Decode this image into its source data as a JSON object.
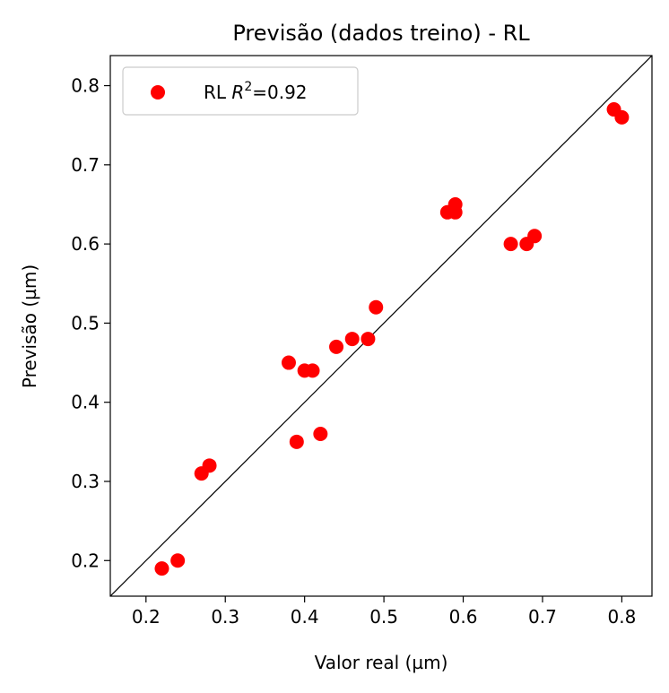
{
  "chart_data": {
    "type": "scatter",
    "title": "Previsão (dados treino) - RL",
    "xlabel": "Valor real (µm)",
    "ylabel": "Previsão (µm)",
    "xlim": [
      0.155,
      0.838
    ],
    "ylim": [
      0.155,
      0.838
    ],
    "xticks": [
      "0.2",
      "0.3",
      "0.4",
      "0.5",
      "0.6",
      "0.7",
      "0.8"
    ],
    "yticks": [
      "0.2",
      "0.3",
      "0.4",
      "0.5",
      "0.6",
      "0.7",
      "0.8"
    ],
    "grid": false,
    "legend_position": "upper-left",
    "reference_line": "y = x",
    "reference_line_color": "#000000",
    "marker_color": "#ff0000",
    "series": [
      {
        "name": "RL",
        "legend_label_prefix": "RL ",
        "legend_label_var": "R",
        "legend_label_sup": "2",
        "legend_label_suffix": "=0.92",
        "points": [
          {
            "x": 0.22,
            "y": 0.19
          },
          {
            "x": 0.24,
            "y": 0.2
          },
          {
            "x": 0.27,
            "y": 0.31
          },
          {
            "x": 0.28,
            "y": 0.32
          },
          {
            "x": 0.38,
            "y": 0.45
          },
          {
            "x": 0.39,
            "y": 0.35
          },
          {
            "x": 0.4,
            "y": 0.44
          },
          {
            "x": 0.41,
            "y": 0.44
          },
          {
            "x": 0.42,
            "y": 0.36
          },
          {
            "x": 0.44,
            "y": 0.47
          },
          {
            "x": 0.46,
            "y": 0.48
          },
          {
            "x": 0.48,
            "y": 0.48
          },
          {
            "x": 0.49,
            "y": 0.52
          },
          {
            "x": 0.58,
            "y": 0.64
          },
          {
            "x": 0.59,
            "y": 0.64
          },
          {
            "x": 0.59,
            "y": 0.65
          },
          {
            "x": 0.66,
            "y": 0.6
          },
          {
            "x": 0.68,
            "y": 0.6
          },
          {
            "x": 0.69,
            "y": 0.61
          },
          {
            "x": 0.79,
            "y": 0.77
          },
          {
            "x": 0.8,
            "y": 0.76
          }
        ]
      }
    ]
  }
}
